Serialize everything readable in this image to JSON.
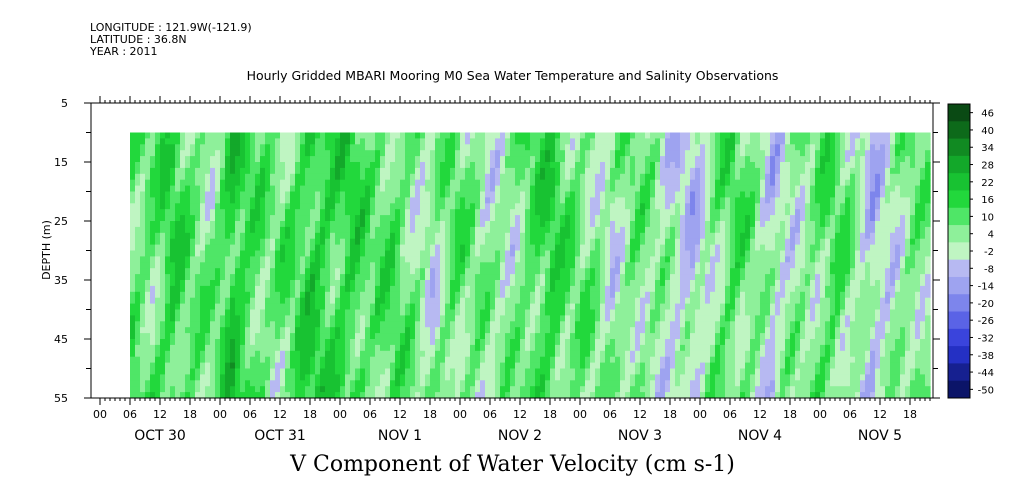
{
  "header": {
    "longitude": "LONGITUDE : 121.9W(-121.9)",
    "latitude": "LATITUDE : 36.8N",
    "year": "YEAR : 2011"
  },
  "chart_data": {
    "type": "heatmap",
    "title": "Hourly Gridded MBARI Mooring M0 Sea Water Temperature and Salinity Observations",
    "xlabel": "V Component of Water Velocity (cm s-1)",
    "ylabel": "DEPTH (m)",
    "y_ticks": [
      5,
      15,
      25,
      35,
      45,
      55
    ],
    "ylim": [
      55,
      5
    ],
    "y_data_range": [
      10,
      55
    ],
    "hour_ticks": [
      "00",
      "06",
      "12",
      "18"
    ],
    "days": [
      "OCT 30",
      "OCT 31",
      "NOV  1",
      "NOV  2",
      "NOV  3",
      "NOV  4",
      "NOV  5"
    ],
    "x_data_start_hour": 6,
    "x_data_end_hour": 166,
    "colorbar": {
      "levels": [
        46,
        40,
        34,
        28,
        22,
        16,
        10,
        4,
        -2,
        -8,
        -14,
        -20,
        -26,
        -32,
        -38,
        -44,
        -50
      ],
      "range": [
        -50,
        50
      ]
    },
    "column_profile": [
      {
        "hour": 6,
        "v": 12
      },
      {
        "hour": 10,
        "v": 10
      },
      {
        "hour": 14,
        "v": 18
      },
      {
        "hour": 18,
        "v": 10
      },
      {
        "hour": 22,
        "v": 8
      },
      {
        "hour": 26,
        "v": 22
      },
      {
        "hour": 30,
        "v": 14
      },
      {
        "hour": 34,
        "v": 8
      },
      {
        "hour": 38,
        "v": 12
      },
      {
        "hour": 42,
        "v": 20
      },
      {
        "hour": 46,
        "v": 16
      },
      {
        "hour": 50,
        "v": 18
      },
      {
        "hour": 54,
        "v": 10
      },
      {
        "hour": 58,
        "v": 14
      },
      {
        "hour": 62,
        "v": 8
      },
      {
        "hour": 66,
        "v": 2
      },
      {
        "hour": 70,
        "v": 12
      },
      {
        "hour": 74,
        "v": 8
      },
      {
        "hour": 78,
        "v": 4
      },
      {
        "hour": 82,
        "v": 6
      },
      {
        "hour": 86,
        "v": 14
      },
      {
        "hour": 90,
        "v": 18
      },
      {
        "hour": 94,
        "v": 10
      },
      {
        "hour": 98,
        "v": 8
      },
      {
        "hour": 102,
        "v": 2
      },
      {
        "hour": 106,
        "v": 10
      },
      {
        "hour": 110,
        "v": 6
      },
      {
        "hour": 114,
        "v": 0
      },
      {
        "hour": 118,
        "v": -4
      },
      {
        "hour": 122,
        "v": 6
      },
      {
        "hour": 126,
        "v": 14
      },
      {
        "hour": 130,
        "v": 8
      },
      {
        "hour": 134,
        "v": -2
      },
      {
        "hour": 138,
        "v": 4
      },
      {
        "hour": 142,
        "v": 8
      },
      {
        "hour": 146,
        "v": 14
      },
      {
        "hour": 150,
        "v": 6
      },
      {
        "hour": 154,
        "v": -4
      },
      {
        "hour": 158,
        "v": 2
      },
      {
        "hour": 162,
        "v": 10
      },
      {
        "hour": 166,
        "v": 6
      }
    ]
  }
}
